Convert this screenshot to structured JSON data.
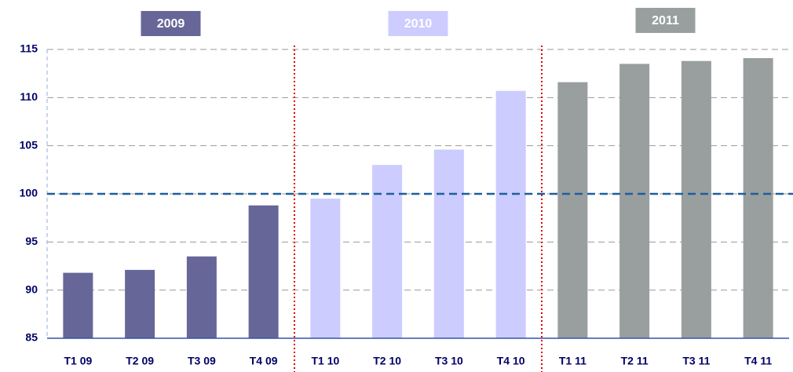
{
  "chart_data": {
    "type": "bar",
    "categories": [
      "T1 09",
      "T2 09",
      "T3 09",
      "T4 09",
      "T1 10",
      "T2 10",
      "T3 10",
      "T4 10",
      "T1 11",
      "T2 11",
      "T3 11",
      "T4 11"
    ],
    "series": [
      {
        "name": "2009",
        "color": "#666699",
        "values": [
          91.8,
          92.1,
          93.5,
          98.8,
          null,
          null,
          null,
          null,
          null,
          null,
          null,
          null
        ]
      },
      {
        "name": "2010",
        "color": "#ccccff",
        "values": [
          null,
          null,
          null,
          null,
          99.5,
          103.0,
          104.6,
          110.7,
          null,
          null,
          null,
          null
        ]
      },
      {
        "name": "2011",
        "color": "#999f9f",
        "values": [
          null,
          null,
          null,
          null,
          null,
          null,
          null,
          null,
          111.6,
          113.5,
          113.8,
          114.1
        ]
      }
    ],
    "ylim": [
      85,
      115
    ],
    "yticks": [
      85,
      90,
      95,
      100,
      105,
      110,
      115
    ],
    "grid": true,
    "reference_line": 100
  }
}
